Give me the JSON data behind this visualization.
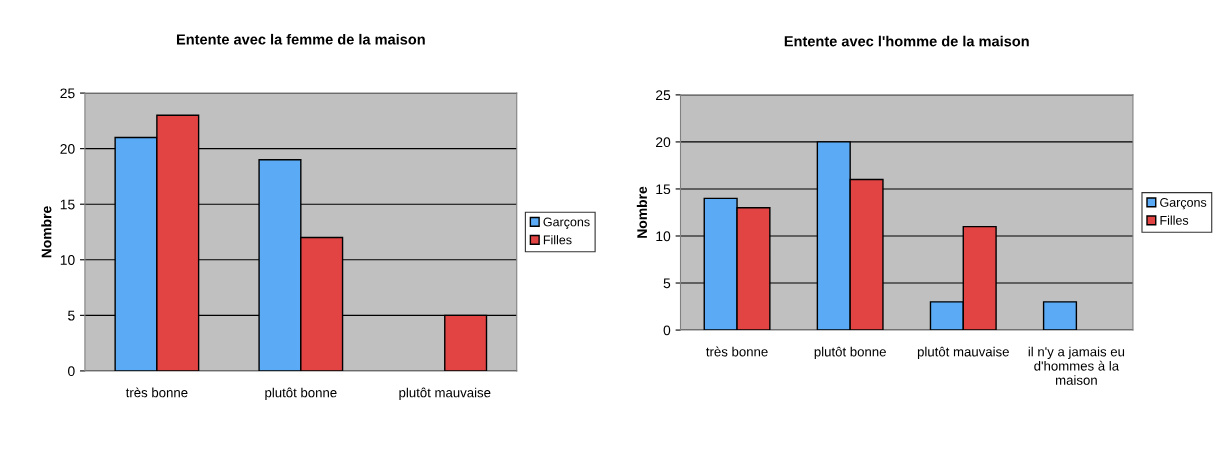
{
  "chart_data": [
    {
      "type": "bar",
      "title": "Entente avec la femme de la maison",
      "ylabel": "Nombre",
      "categories": [
        "très bonne",
        "plutôt bonne",
        "plutôt mauvaise"
      ],
      "series": [
        {
          "name": "Garçons",
          "color": "#5aaaf5",
          "values": [
            21,
            19,
            null
          ]
        },
        {
          "name": "Filles",
          "color": "#e24444",
          "values": [
            23,
            12,
            5
          ]
        }
      ],
      "ylim": [
        0,
        25
      ],
      "yticks": [
        0,
        5,
        10,
        15,
        20,
        25
      ],
      "grid": "y",
      "legend": "right"
    },
    {
      "type": "bar",
      "title": "Entente avec l'homme de la maison",
      "ylabel": "Nombre",
      "categories": [
        "très bonne",
        "plutôt bonne",
        "plutôt mauvaise",
        "il n'y a jamais eu\nd'hommes à la\nmaison"
      ],
      "series": [
        {
          "name": "Garçons",
          "color": "#5aaaf5",
          "values": [
            14,
            20,
            3,
            3
          ]
        },
        {
          "name": "Filles",
          "color": "#e24444",
          "values": [
            13,
            16,
            11,
            null
          ]
        }
      ],
      "ylim": [
        0,
        25
      ],
      "yticks": [
        0,
        5,
        10,
        15,
        20,
        25
      ],
      "grid": "y",
      "legend": "right"
    }
  ]
}
